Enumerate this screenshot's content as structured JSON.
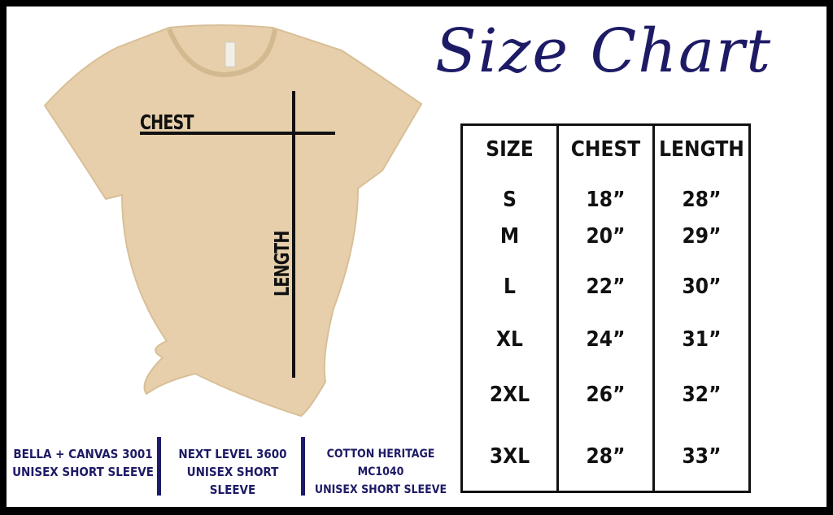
{
  "title": "Size Chart",
  "diagram": {
    "chest_label": "CHEST",
    "length_label": "LENGTH"
  },
  "colors": {
    "navy": "#1e1b66",
    "shirt": "#e6cfaa",
    "border": "#000000"
  },
  "table": {
    "headers": [
      "SIZE",
      "CHEST",
      "LENGTH"
    ],
    "rows": [
      [
        "S",
        "18”",
        "28”"
      ],
      [
        "M",
        "20”",
        "29”"
      ],
      [
        "L",
        "22”",
        "30”"
      ],
      [
        "XL",
        "24”",
        "31”"
      ],
      [
        "2XL",
        "26”",
        "32”"
      ],
      [
        "3XL",
        "28”",
        "33”"
      ]
    ]
  },
  "brands": [
    {
      "name": "BELLA + CANVAS 3001",
      "style": "UNISEX SHORT SLEEVE"
    },
    {
      "name": "NEXT LEVEL 3600",
      "style": "UNISEX SHORT SLEEVE"
    },
    {
      "name": "COTTON HERITAGE MC1040",
      "style": "UNISEX SHORT SLEEVE"
    }
  ]
}
